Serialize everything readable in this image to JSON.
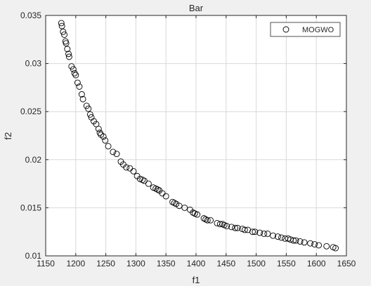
{
  "chart_data": {
    "type": "scatter",
    "title": "Bar",
    "xlabel": "f1",
    "ylabel": "f2",
    "xlim": [
      1150,
      1650
    ],
    "ylim": [
      0.01,
      0.035
    ],
    "xticks": [
      "1150",
      "1200",
      "1250",
      "1300",
      "1350",
      "1400",
      "1450",
      "1500",
      "1550",
      "1600",
      "1650"
    ],
    "yticks": [
      "0.01",
      "0.015",
      "0.02",
      "0.025",
      "0.03",
      "0.035"
    ],
    "grid": true,
    "legend_position": "top-right",
    "marker": "open-circle",
    "colors": {
      "marker": "#000000",
      "axes_bg": "#ffffff",
      "figure_bg": "#f0f0f0",
      "grid": "#d9d9d9"
    },
    "series": [
      {
        "name": "MOGWO",
        "points": [
          [
            1176,
            0.0342
          ],
          [
            1177,
            0.0339
          ],
          [
            1179,
            0.0333
          ],
          [
            1181,
            0.033
          ],
          [
            1183,
            0.0323
          ],
          [
            1184,
            0.0321
          ],
          [
            1186,
            0.0315
          ],
          [
            1188,
            0.031
          ],
          [
            1189,
            0.0307
          ],
          [
            1193,
            0.0297
          ],
          [
            1196,
            0.0294
          ],
          [
            1198,
            0.029
          ],
          [
            1200,
            0.0288
          ],
          [
            1203,
            0.028
          ],
          [
            1206,
            0.0276
          ],
          [
            1210,
            0.0268
          ],
          [
            1212,
            0.0263
          ],
          [
            1218,
            0.0256
          ],
          [
            1221,
            0.0253
          ],
          [
            1224,
            0.0247
          ],
          [
            1226,
            0.0244
          ],
          [
            1230,
            0.024
          ],
          [
            1234,
            0.0237
          ],
          [
            1238,
            0.0232
          ],
          [
            1240,
            0.0228
          ],
          [
            1242,
            0.0226
          ],
          [
            1246,
            0.0224
          ],
          [
            1249,
            0.022
          ],
          [
            1254,
            0.0214
          ],
          [
            1262,
            0.0208
          ],
          [
            1268,
            0.0206
          ],
          [
            1275,
            0.0198
          ],
          [
            1279,
            0.0195
          ],
          [
            1284,
            0.0192
          ],
          [
            1290,
            0.0191
          ],
          [
            1296,
            0.0188
          ],
          [
            1302,
            0.0183
          ],
          [
            1307,
            0.018
          ],
          [
            1311,
            0.0179
          ],
          [
            1314,
            0.0178
          ],
          [
            1321,
            0.0175
          ],
          [
            1329,
            0.0171
          ],
          [
            1333,
            0.017
          ],
          [
            1336,
            0.0169
          ],
          [
            1339,
            0.0168
          ],
          [
            1344,
            0.0165
          ],
          [
            1350,
            0.0162
          ],
          [
            1361,
            0.0156
          ],
          [
            1364,
            0.0155
          ],
          [
            1367,
            0.0154
          ],
          [
            1372,
            0.0152
          ],
          [
            1381,
            0.015
          ],
          [
            1390,
            0.0148
          ],
          [
            1395,
            0.0145
          ],
          [
            1398,
            0.0144
          ],
          [
            1402,
            0.0143
          ],
          [
            1413,
            0.0139
          ],
          [
            1416,
            0.0138
          ],
          [
            1419,
            0.0137
          ],
          [
            1424,
            0.0137
          ],
          [
            1435,
            0.0134
          ],
          [
            1440,
            0.0133
          ],
          [
            1444,
            0.0133
          ],
          [
            1447,
            0.0132
          ],
          [
            1451,
            0.0131
          ],
          [
            1459,
            0.013
          ],
          [
            1465,
            0.0129
          ],
          [
            1469,
            0.0129
          ],
          [
            1477,
            0.0128
          ],
          [
            1481,
            0.0127
          ],
          [
            1486,
            0.0127
          ],
          [
            1494,
            0.0125
          ],
          [
            1498,
            0.0125
          ],
          [
            1506,
            0.0124
          ],
          [
            1513,
            0.0123
          ],
          [
            1519,
            0.0123
          ],
          [
            1528,
            0.0121
          ],
          [
            1536,
            0.012
          ],
          [
            1542,
            0.0119
          ],
          [
            1548,
            0.0118
          ],
          [
            1553,
            0.0118
          ],
          [
            1557,
            0.0117
          ],
          [
            1562,
            0.0116
          ],
          [
            1566,
            0.0116
          ],
          [
            1573,
            0.0115
          ],
          [
            1580,
            0.0114
          ],
          [
            1590,
            0.0113
          ],
          [
            1597,
            0.0112
          ],
          [
            1604,
            0.0111
          ],
          [
            1617,
            0.011
          ],
          [
            1628,
            0.0109
          ],
          [
            1632,
            0.0108
          ]
        ]
      }
    ]
  }
}
